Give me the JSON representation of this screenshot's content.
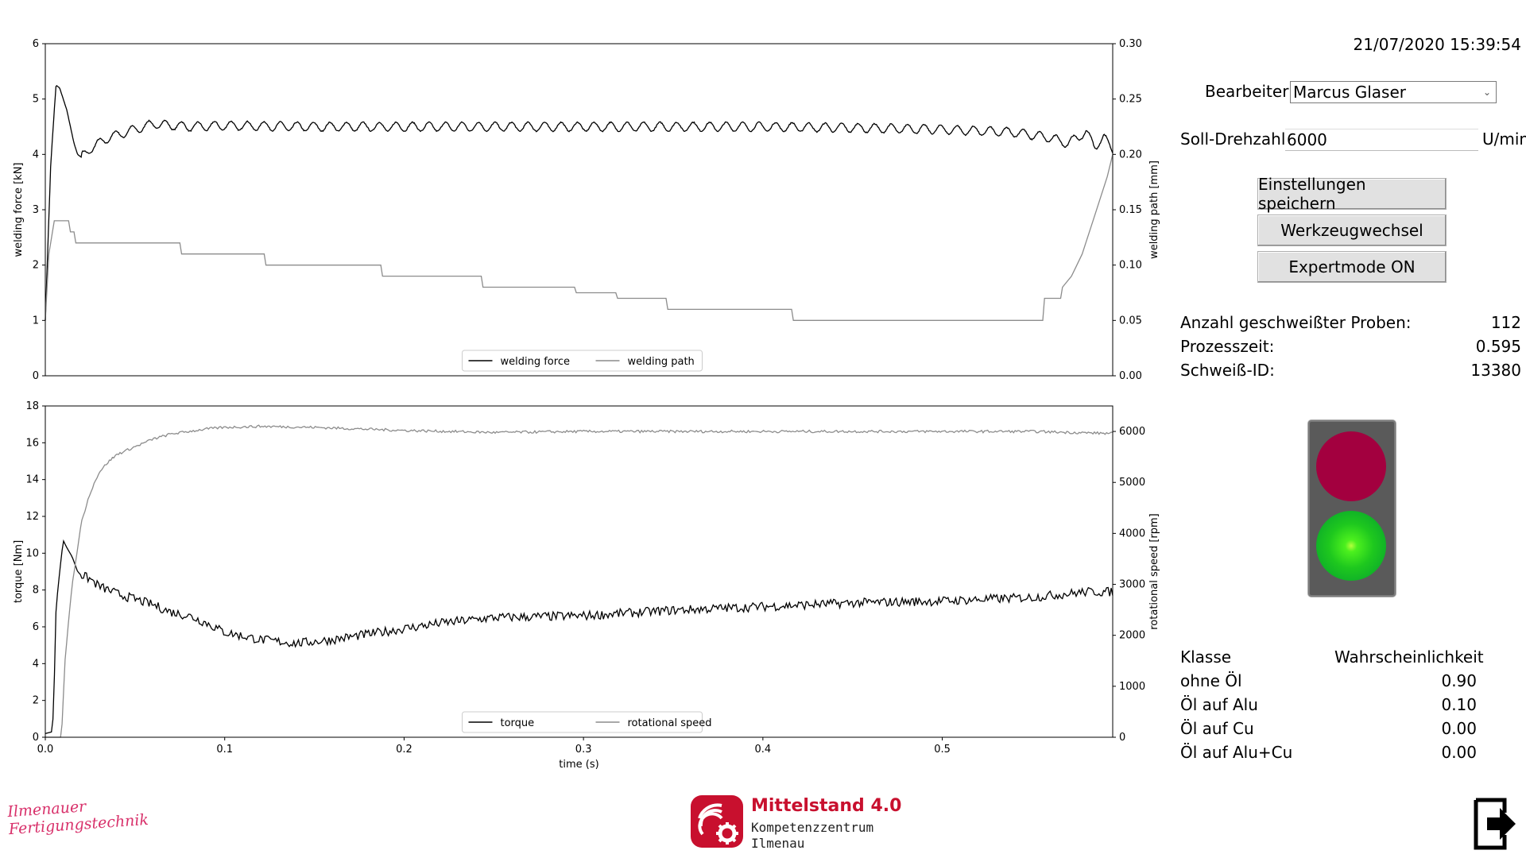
{
  "datetime": "21/07/2020 15:39:54",
  "operator": {
    "label": "Bearbeiter:",
    "value": "Marcus Glaser"
  },
  "target_speed": {
    "label": "Soll-Drehzahl:",
    "value": "6000",
    "unit": "U/min"
  },
  "buttons": {
    "save": "Einstellungen speichern",
    "tool_change": "Werkzeugwechsel",
    "expert_mode": "Expertmode ON"
  },
  "stats": [
    {
      "label": "Anzahl geschweißter Proben:",
      "value": "112"
    },
    {
      "label": "Prozesszeit:",
      "value": "0.595"
    },
    {
      "label": "Schweiß-ID:",
      "value": "13380"
    }
  ],
  "traffic_light": {
    "red_on": false,
    "green_on": true
  },
  "classification": {
    "header_class": "Klasse",
    "header_prob": "Wahrscheinlichkeit",
    "rows": [
      {
        "label": "ohne Öl",
        "value": "0.90"
      },
      {
        "label": "Öl auf Alu",
        "value": "0.10"
      },
      {
        "label": "Öl auf Cu",
        "value": "0.00"
      },
      {
        "label": "Öl auf Alu+Cu",
        "value": "0.00"
      }
    ]
  },
  "logos": {
    "signature_line1": "Ilmenauer",
    "signature_line2": "Fertigungstechnik",
    "mittelstand_title": "Mittelstand 4.0",
    "mittelstand_sub1": "Kompetenzzentrum",
    "mittelstand_sub2": "Ilmenau"
  },
  "colors": {
    "series_dark": "#000000",
    "series_light": "#8c8c8c",
    "red_lamp": "#a3003f",
    "green_lamp": "#1ec81e",
    "brand_red": "#c8102e"
  },
  "chart_data": [
    {
      "type": "line",
      "ylabel": "welding force [kN]",
      "y2label": "welding path [mm]",
      "xlim": [
        0,
        0.595
      ],
      "ylim": [
        0,
        6
      ],
      "y2lim": [
        0,
        0.3
      ],
      "yticks": [
        0,
        1,
        2,
        3,
        4,
        5,
        6
      ],
      "y2ticks": [
        "0.00",
        "0.05",
        "0.10",
        "0.15",
        "0.20",
        "0.25",
        "0.30"
      ],
      "legend": "bottom-center",
      "series": [
        {
          "name": "welding force",
          "axis": "left",
          "color": "dark",
          "x": [
            0,
            0.003,
            0.005,
            0.006,
            0.008,
            0.01,
            0.012,
            0.014,
            0.016,
            0.018,
            0.02,
            0.025,
            0.03,
            0.035,
            0.04,
            0.05,
            0.06,
            0.08,
            0.1,
            0.15,
            0.2,
            0.25,
            0.3,
            0.35,
            0.4,
            0.45,
            0.5,
            0.54,
            0.56,
            0.57,
            0.58,
            0.585,
            0.59,
            0.595
          ],
          "y": [
            1.0,
            3.8,
            4.8,
            5.25,
            5.2,
            5.0,
            4.8,
            4.5,
            4.2,
            4.0,
            3.95,
            4.1,
            4.2,
            4.3,
            4.35,
            4.45,
            4.55,
            4.5,
            4.52,
            4.5,
            4.5,
            4.5,
            4.5,
            4.5,
            4.5,
            4.48,
            4.45,
            4.4,
            4.3,
            4.2,
            4.4,
            4.15,
            4.3,
            4.1
          ],
          "oscillation": 0.08
        },
        {
          "name": "welding path",
          "axis": "right",
          "color": "light",
          "x": [
            0,
            0.002,
            0.004,
            0.005,
            0.006,
            0.013,
            0.014,
            0.016,
            0.017,
            0.075,
            0.076,
            0.122,
            0.123,
            0.187,
            0.188,
            0.243,
            0.244,
            0.295,
            0.296,
            0.318,
            0.319,
            0.346,
            0.347,
            0.416,
            0.417,
            0.556,
            0.557,
            0.566,
            0.567,
            0.572,
            0.575,
            0.578,
            0.58,
            0.584,
            0.588,
            0.592,
            0.595
          ],
          "y": [
            0.05,
            0.11,
            0.13,
            0.14,
            0.14,
            0.14,
            0.13,
            0.13,
            0.12,
            0.12,
            0.11,
            0.11,
            0.1,
            0.1,
            0.09,
            0.09,
            0.08,
            0.08,
            0.075,
            0.075,
            0.07,
            0.07,
            0.06,
            0.06,
            0.05,
            0.05,
            0.07,
            0.07,
            0.08,
            0.09,
            0.1,
            0.11,
            0.12,
            0.14,
            0.16,
            0.18,
            0.2
          ]
        }
      ]
    },
    {
      "type": "line",
      "xlabel": "time (s)",
      "ylabel": "torque [Nm]",
      "y2label": "rotational speed [rpm]",
      "xlim": [
        0,
        0.595
      ],
      "ylim": [
        0,
        18
      ],
      "y2lim": [
        0,
        6500
      ],
      "xticks": [
        "0.0",
        "0.1",
        "0.2",
        "0.3",
        "0.4",
        "0.5"
      ],
      "yticks": [
        0,
        2,
        4,
        6,
        8,
        10,
        12,
        14,
        16,
        18
      ],
      "y2ticks": [
        0,
        1000,
        2000,
        3000,
        4000,
        5000,
        6000
      ],
      "legend": "bottom-center",
      "series": [
        {
          "name": "torque",
          "axis": "left",
          "color": "dark",
          "x": [
            0,
            0.004,
            0.005,
            0.006,
            0.008,
            0.01,
            0.012,
            0.015,
            0.018,
            0.02,
            0.025,
            0.03,
            0.04,
            0.05,
            0.06,
            0.07,
            0.08,
            0.09,
            0.1,
            0.11,
            0.12,
            0.13,
            0.14,
            0.15,
            0.16,
            0.18,
            0.2,
            0.22,
            0.25,
            0.3,
            0.35,
            0.4,
            0.45,
            0.5,
            0.55,
            0.58,
            0.595
          ],
          "y": [
            0.2,
            0.3,
            3.0,
            7.0,
            9.0,
            10.7,
            10.3,
            9.8,
            9.0,
            8.8,
            8.6,
            8.2,
            7.8,
            7.5,
            7.2,
            6.8,
            6.6,
            6.2,
            5.7,
            5.5,
            5.3,
            5.2,
            5.1,
            5.2,
            5.3,
            5.6,
            5.9,
            6.2,
            6.5,
            6.6,
            6.9,
            7.1,
            7.3,
            7.4,
            7.6,
            7.9,
            7.9
          ],
          "noise": 0.25
        },
        {
          "name": "rotational speed",
          "axis": "right",
          "color": "light",
          "x": [
            0,
            0.009,
            0.011,
            0.013,
            0.015,
            0.018,
            0.02,
            0.025,
            0.03,
            0.035,
            0.04,
            0.05,
            0.06,
            0.07,
            0.08,
            0.09,
            0.1,
            0.12,
            0.15,
            0.2,
            0.25,
            0.3,
            0.35,
            0.4,
            0.45,
            0.5,
            0.55,
            0.595
          ],
          "y": [
            0,
            0,
            1500,
            2300,
            3000,
            3700,
            4200,
            4800,
            5200,
            5400,
            5550,
            5700,
            5850,
            5950,
            6000,
            6050,
            6080,
            6100,
            6080,
            6020,
            5980,
            6000,
            6000,
            6000,
            6000,
            6000,
            6000,
            5960
          ],
          "noise": 25
        }
      ]
    }
  ]
}
